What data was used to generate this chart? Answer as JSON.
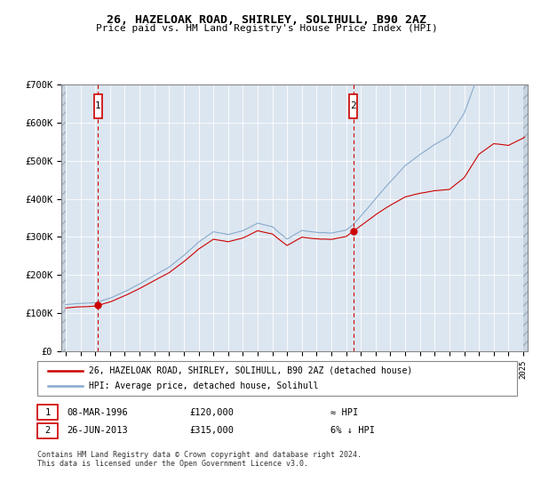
{
  "title": "26, HAZELOAK ROAD, SHIRLEY, SOLIHULL, B90 2AZ",
  "subtitle": "Price paid vs. HM Land Registry's House Price Index (HPI)",
  "legend_line1": "26, HAZELOAK ROAD, SHIRLEY, SOLIHULL, B90 2AZ (detached house)",
  "legend_line2": "HPI: Average price, detached house, Solihull",
  "footnote": "Contains HM Land Registry data © Crown copyright and database right 2024.\nThis data is licensed under the Open Government Licence v3.0.",
  "annotation1_label": "1",
  "annotation1_date": "08-MAR-1996",
  "annotation1_price": "£120,000",
  "annotation1_hpi": "≈ HPI",
  "annotation2_label": "2",
  "annotation2_date": "26-JUN-2013",
  "annotation2_price": "£315,000",
  "annotation2_hpi": "6% ↓ HPI",
  "sale1_x": 1996.18,
  "sale1_y": 120000,
  "sale2_x": 2013.48,
  "sale2_y": 315000,
  "price_line_color": "#cc0000",
  "hpi_line_color": "#88aacc",
  "plot_bg_color": "#dce6f0",
  "ylim": [
    0,
    700000
  ],
  "yticks": [
    0,
    100000,
    200000,
    300000,
    400000,
    500000,
    600000,
    700000
  ],
  "ytick_labels": [
    "£0",
    "£100K",
    "£200K",
    "£300K",
    "£400K",
    "£500K",
    "£600K",
    "£700K"
  ],
  "xmin": 1993.7,
  "xmax": 2025.3,
  "grid_color": "#ffffff",
  "annotation_box_color": "#cc0000"
}
